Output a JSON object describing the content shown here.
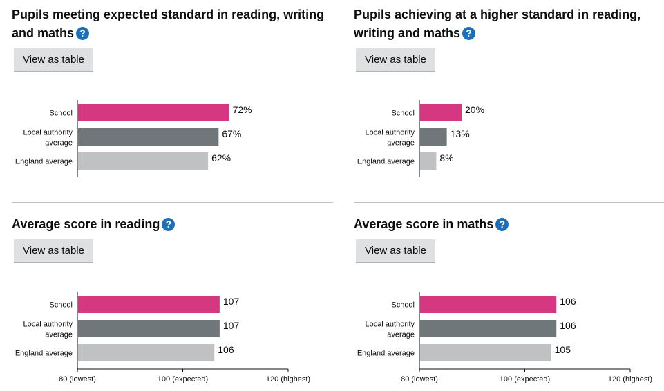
{
  "view_as_table_label": "View as table",
  "help_glyph": "?",
  "colors": {
    "school": "#d53880",
    "local": "#6f777b",
    "england": "#bfc1c3",
    "help": "#1d70b8"
  },
  "panels": [
    {
      "title": "Pupils meeting expected standard in reading, writing and maths"
    },
    {
      "title": "Pupils achieving at a higher standard in reading, writing and maths"
    },
    {
      "title": "Average score in reading"
    },
    {
      "title": "Average score in maths"
    }
  ],
  "chart_data": [
    {
      "type": "bar",
      "orientation": "horizontal",
      "categories": [
        "School",
        "Local authority average",
        "England average"
      ],
      "values": [
        72,
        67,
        62
      ],
      "value_labels": [
        "72%",
        "67%",
        "62%"
      ],
      "xlim": [
        0,
        100
      ],
      "xticks": []
    },
    {
      "type": "bar",
      "orientation": "horizontal",
      "categories": [
        "School",
        "Local authority average",
        "England average"
      ],
      "values": [
        20,
        13,
        8
      ],
      "value_labels": [
        "20%",
        "13%",
        "8%"
      ],
      "xlim": [
        0,
        100
      ],
      "xticks": []
    },
    {
      "type": "bar",
      "orientation": "horizontal",
      "categories": [
        "School",
        "Local authority average",
        "England average"
      ],
      "values": [
        107,
        107,
        106
      ],
      "value_labels": [
        "107",
        "107",
        "106"
      ],
      "xlim": [
        80,
        120
      ],
      "xticks": [
        {
          "value": 80,
          "label": "80 (lowest)"
        },
        {
          "value": 100,
          "label": "100 (expected)"
        },
        {
          "value": 120,
          "label": "120 (highest)"
        }
      ]
    },
    {
      "type": "bar",
      "orientation": "horizontal",
      "categories": [
        "School",
        "Local authority average",
        "England average"
      ],
      "values": [
        106,
        106,
        105
      ],
      "value_labels": [
        "106",
        "106",
        "105"
      ],
      "xlim": [
        80,
        120
      ],
      "xticks": [
        {
          "value": 80,
          "label": "80 (lowest)"
        },
        {
          "value": 100,
          "label": "100 (expected)"
        },
        {
          "value": 120,
          "label": "120 (highest)"
        }
      ]
    }
  ]
}
